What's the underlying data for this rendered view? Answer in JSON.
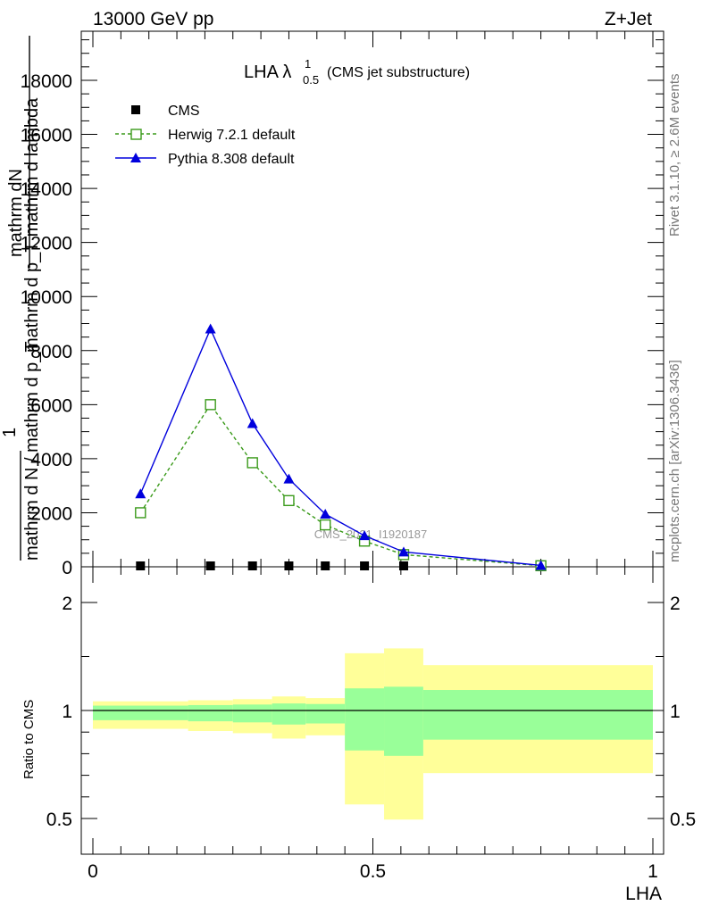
{
  "header": {
    "energy_label": "13000 GeV pp",
    "process_label": "Z+Jet"
  },
  "side_text": {
    "rivet": "Rivet 3.1.10, ≥ 2.6M events",
    "mcplots": "mcplots.cern.ch [arXiv:1306.3436]"
  },
  "watermark": "CMS_2021_I1920187",
  "chart_data": [
    {
      "type": "line",
      "title": "LHA λ",
      "title_sup": "1",
      "title_sub": "0.5",
      "title_suffix": "(CMS jet substructure)",
      "ylabel_top": "mathrm dN",
      "ylabel_mid": "mathrm d p_T mathrm d lambda",
      "ylabel_lower": "1",
      "ylabel_bottom": "mathrm d N / mathrm d p_T",
      "ylim": [
        0,
        20000
      ],
      "xlim": [
        0,
        1
      ],
      "y_ticks": [
        0,
        2000,
        4000,
        6000,
        8000,
        10000,
        12000,
        14000,
        16000,
        18000
      ],
      "y_tick_labels": [
        "0",
        "2000",
        "4000",
        "6000",
        "8000",
        "10000",
        "12000",
        "14000",
        "16000",
        "18000"
      ],
      "legend": "top-left",
      "series": [
        {
          "name": "CMS",
          "style": "square-marker",
          "color": "#000000",
          "x": [
            0.085,
            0.21,
            0.285,
            0.35,
            0.415,
            0.485,
            0.555,
            0.8
          ],
          "values": [
            3,
            6,
            5,
            3.5,
            2.5,
            1.8,
            1,
            0.1
          ]
        },
        {
          "name": "Herwig 7.2.1 default",
          "style": "dashed-open-square",
          "color": "#3a9a1a",
          "x": [
            0.085,
            0.21,
            0.285,
            0.35,
            0.415,
            0.485,
            0.555,
            0.8
          ],
          "values": [
            2000,
            6000,
            3850,
            2450,
            1550,
            950,
            450,
            40
          ]
        },
        {
          "name": "Pythia 8.308 default",
          "style": "solid-triangle",
          "color": "#0000dd",
          "x": [
            0.085,
            0.21,
            0.285,
            0.35,
            0.415,
            0.485,
            0.555,
            0.8
          ],
          "values": [
            2700,
            8800,
            5300,
            3250,
            1950,
            1150,
            550,
            50
          ]
        }
      ]
    },
    {
      "type": "area",
      "ylabel": "Ratio to CMS",
      "xlabel": "LHA",
      "ylim": [
        0.35,
        2.3
      ],
      "xlim": [
        0,
        1
      ],
      "y_ticks": [
        0.5,
        1,
        2
      ],
      "y_tick_labels": [
        "0.5",
        "1",
        "2"
      ],
      "x_ticks": [
        0,
        0.5,
        1
      ],
      "x_tick_labels": [
        "0",
        "0.5",
        "1"
      ],
      "reference_line": 1,
      "band_colors": {
        "outer": "#ffff99",
        "inner": "#99ff99",
        "line": "#000000"
      },
      "bins": [
        {
          "x0": 0.0,
          "x1": 0.17,
          "outer_lo": 0.915,
          "outer_hi": 1.085,
          "inner_lo": 0.955,
          "inner_hi": 1.045
        },
        {
          "x0": 0.17,
          "x1": 0.25,
          "outer_lo": 0.905,
          "outer_hi": 1.095,
          "inner_lo": 0.95,
          "inner_hi": 1.05
        },
        {
          "x0": 0.25,
          "x1": 0.32,
          "outer_lo": 0.895,
          "outer_hi": 1.105,
          "inner_lo": 0.945,
          "inner_hi": 1.055
        },
        {
          "x0": 0.32,
          "x1": 0.38,
          "outer_lo": 0.87,
          "outer_hi": 1.13,
          "inner_lo": 0.935,
          "inner_hi": 1.065
        },
        {
          "x0": 0.38,
          "x1": 0.45,
          "outer_lo": 0.885,
          "outer_hi": 1.115,
          "inner_lo": 0.94,
          "inner_hi": 1.06
        },
        {
          "x0": 0.45,
          "x1": 0.52,
          "outer_lo": 0.565,
          "outer_hi": 1.53,
          "inner_lo": 0.815,
          "inner_hi": 1.205
        },
        {
          "x0": 0.52,
          "x1": 0.59,
          "outer_lo": 0.495,
          "outer_hi": 1.575,
          "inner_lo": 0.79,
          "inner_hi": 1.22
        },
        {
          "x0": 0.59,
          "x1": 1.0,
          "outer_lo": 0.71,
          "outer_hi": 1.42,
          "inner_lo": 0.865,
          "inner_hi": 1.19
        }
      ]
    }
  ]
}
